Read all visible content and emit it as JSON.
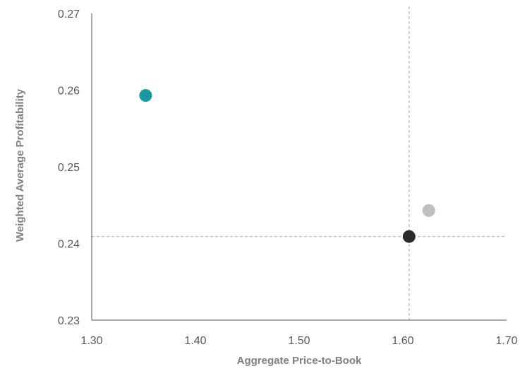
{
  "chart_data": {
    "type": "scatter",
    "title": "",
    "xlabel": "Aggregate Price-to-Book",
    "ylabel": "Weighted Average Profitability",
    "xlim": [
      1.3,
      1.7
    ],
    "ylim": [
      0.23,
      0.27
    ],
    "x_ticks": [
      "1.30",
      "1.40",
      "1.50",
      "1.60",
      "1.70"
    ],
    "y_ticks": [
      "0.27",
      "0.26",
      "0.25",
      "0.24",
      "0.23"
    ],
    "grid": false,
    "legend": "none",
    "points": [
      {
        "x": 1.352,
        "y": 0.2593,
        "color": "#1a9aa0"
      },
      {
        "x": 1.625,
        "y": 0.2443,
        "color": "#bfbfbf"
      },
      {
        "x": 1.606,
        "y": 0.2409,
        "color": "#2b2b2b"
      }
    ],
    "reference_lines": [
      {
        "axis": "x",
        "value": 1.606,
        "color": "#a6a6a6",
        "style": "dashed"
      },
      {
        "axis": "y",
        "value": 0.2409,
        "color": "#a6a6a6",
        "style": "dashed"
      }
    ],
    "axis_color": "#595959"
  }
}
